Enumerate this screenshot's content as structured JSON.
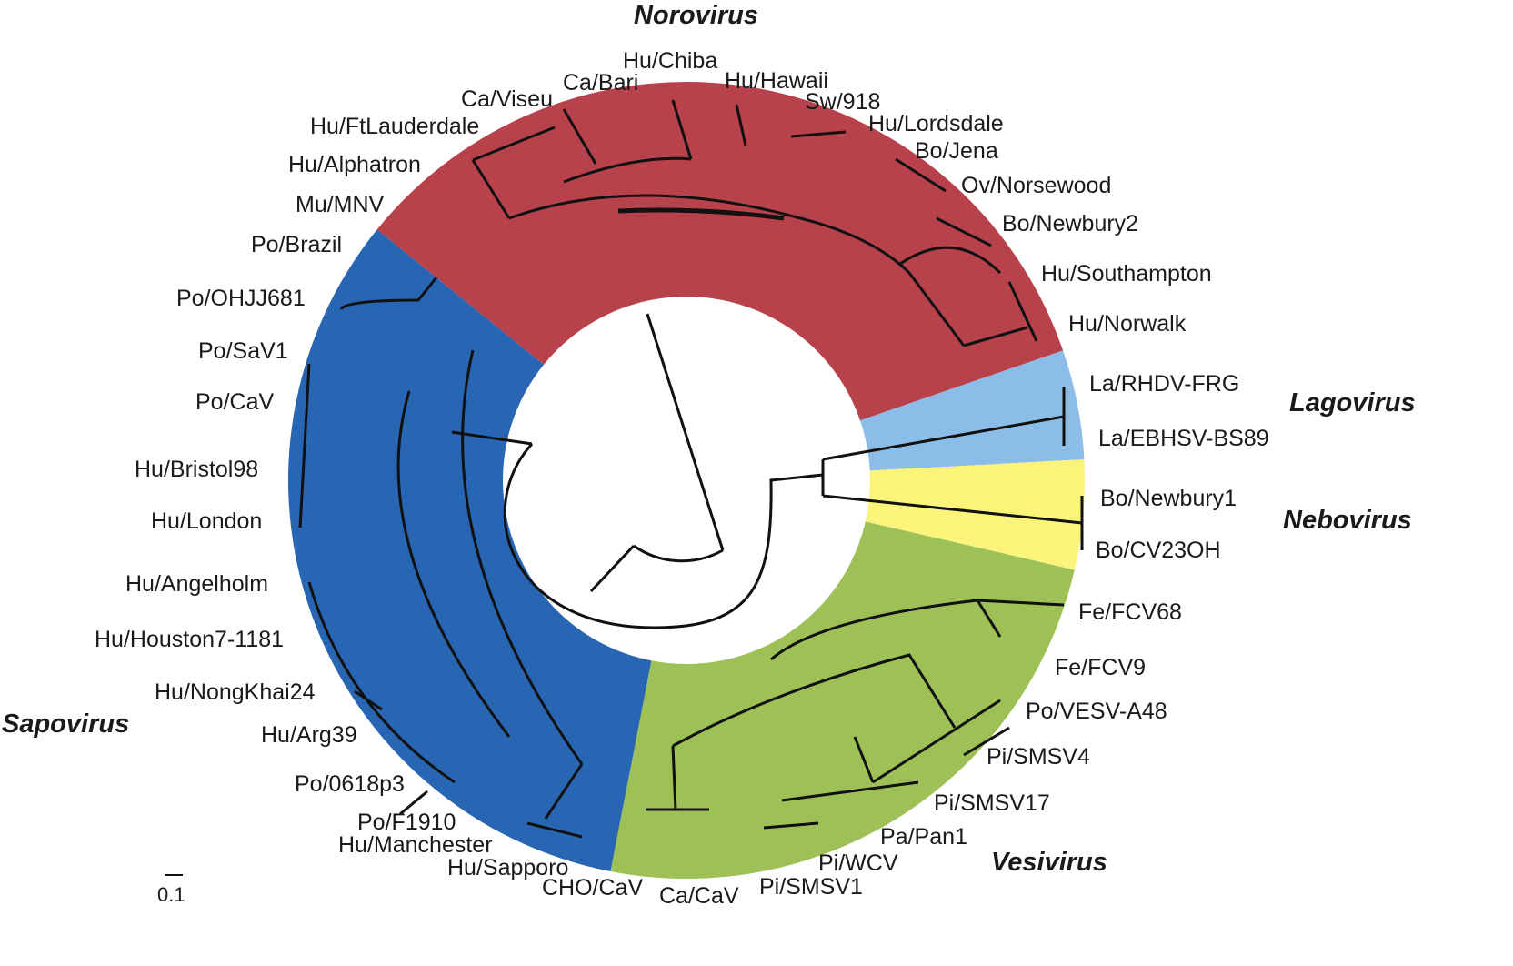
{
  "genera": {
    "norovirus": {
      "name": "Norovirus",
      "color": "#b8424c"
    },
    "sapovirus": {
      "name": "Sapovirus",
      "color": "#2866b4"
    },
    "lagovirus": {
      "name": "Lagovirus",
      "color": "#8cbde9"
    },
    "nebovirus": {
      "name": "Nebovirus",
      "color": "#fbf37a"
    },
    "vesivirus": {
      "name": "Vesivirus",
      "color": "#9dc156"
    }
  },
  "taxa": {
    "norovirus": [
      "Mu/MNV",
      "Hu/Alphatron",
      "Hu/FtLauderdale",
      "Ca/Viseu",
      "Ca/Bari",
      "Hu/Chiba",
      "Hu/Hawaii",
      "Sw/918",
      "Hu/Lordsdale",
      "Bo/Jena",
      "Ov/Norsewood",
      "Bo/Newbury2",
      "Hu/Southampton",
      "Hu/Norwalk"
    ],
    "lagovirus": [
      "La/RHDV-FRG",
      "La/EBHSV-BS89"
    ],
    "nebovirus": [
      "Bo/Newbury1",
      "Bo/CV23OH"
    ],
    "vesivirus": [
      "Fe/FCV68",
      "Fe/FCV9",
      "Po/VESV-A48",
      "Pi/SMSV4",
      "Pi/SMSV17",
      "Pa/Pan1",
      "Pi/WCV",
      "Pi/SMSV1",
      "Ca/CaV",
      "CHO/CaV"
    ],
    "sapovirus": [
      "Hu/Sapporo",
      "Hu/Manchester",
      "Po/F1910",
      "Po/0618p3",
      "Hu/Arg39",
      "Hu/NongKhai24",
      "Hu/Houston7-1181",
      "Hu/Angelholm",
      "Hu/London",
      "Hu/Bristol98",
      "Po/CaV",
      "Po/SaV1",
      "Po/OHJJ681",
      "Po/Brazil"
    ]
  },
  "scale_bar": {
    "label": "0.1"
  }
}
